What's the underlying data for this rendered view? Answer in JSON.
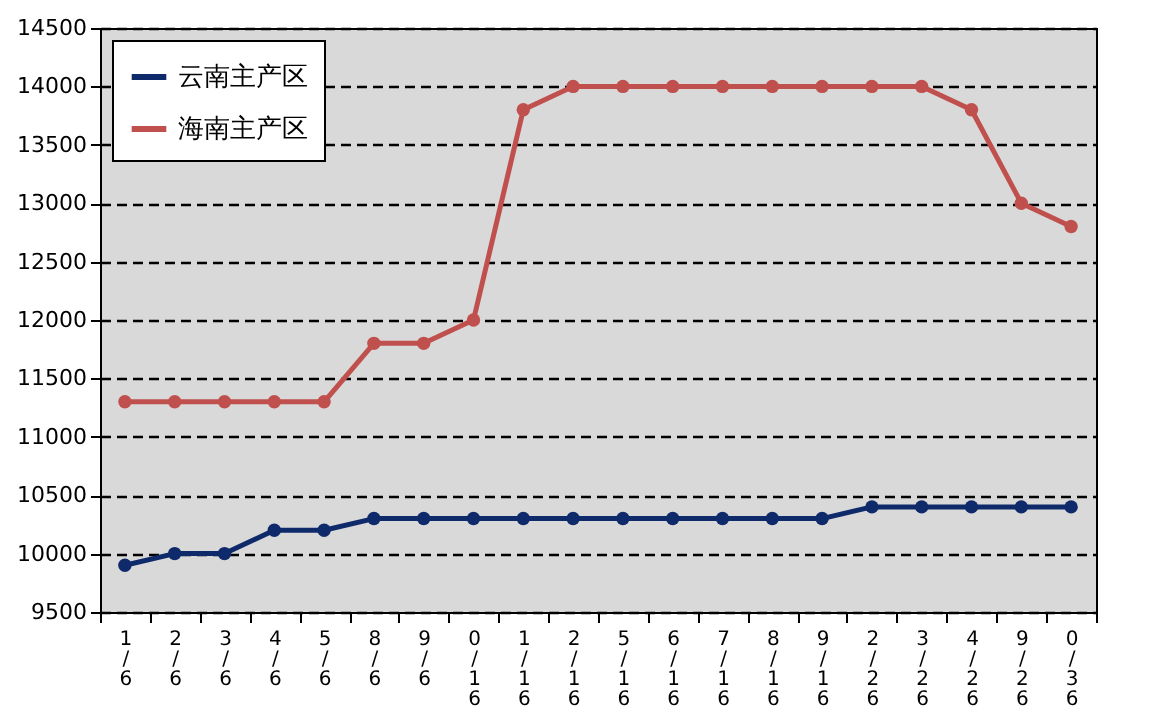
{
  "chart_data": {
    "type": "line",
    "categories": [
      "1/6",
      "2/6",
      "3/6",
      "4/6",
      "5/6",
      "8/6",
      "9/6",
      "0/16",
      "1/16",
      "2/16",
      "5/16",
      "6/16",
      "7/16",
      "8/16",
      "9/16",
      "2/26",
      "3/26",
      "4/26",
      "9/26",
      "0/36"
    ],
    "series": [
      {
        "name": "云南主产区",
        "color": "#0f2a6b",
        "values": [
          9900,
          10000,
          10000,
          10200,
          10200,
          10300,
          10300,
          10300,
          10300,
          10300,
          10300,
          10300,
          10300,
          10300,
          10300,
          10400,
          10400,
          10400,
          10400,
          10400
        ]
      },
      {
        "name": "海南主产区",
        "color": "#c0504d",
        "values": [
          11300,
          11300,
          11300,
          11300,
          11300,
          11800,
          11800,
          12000,
          13800,
          14000,
          14000,
          14000,
          14000,
          14000,
          14000,
          14000,
          14000,
          13800,
          13000,
          12800
        ]
      }
    ],
    "ylim": [
      9500,
      14500
    ],
    "yticks": [
      9500,
      10000,
      10500,
      11000,
      11500,
      12000,
      12500,
      13000,
      13500,
      14000,
      14500
    ],
    "grid": "y",
    "legend": "top left",
    "marker": "circle",
    "line_style": "solid"
  }
}
